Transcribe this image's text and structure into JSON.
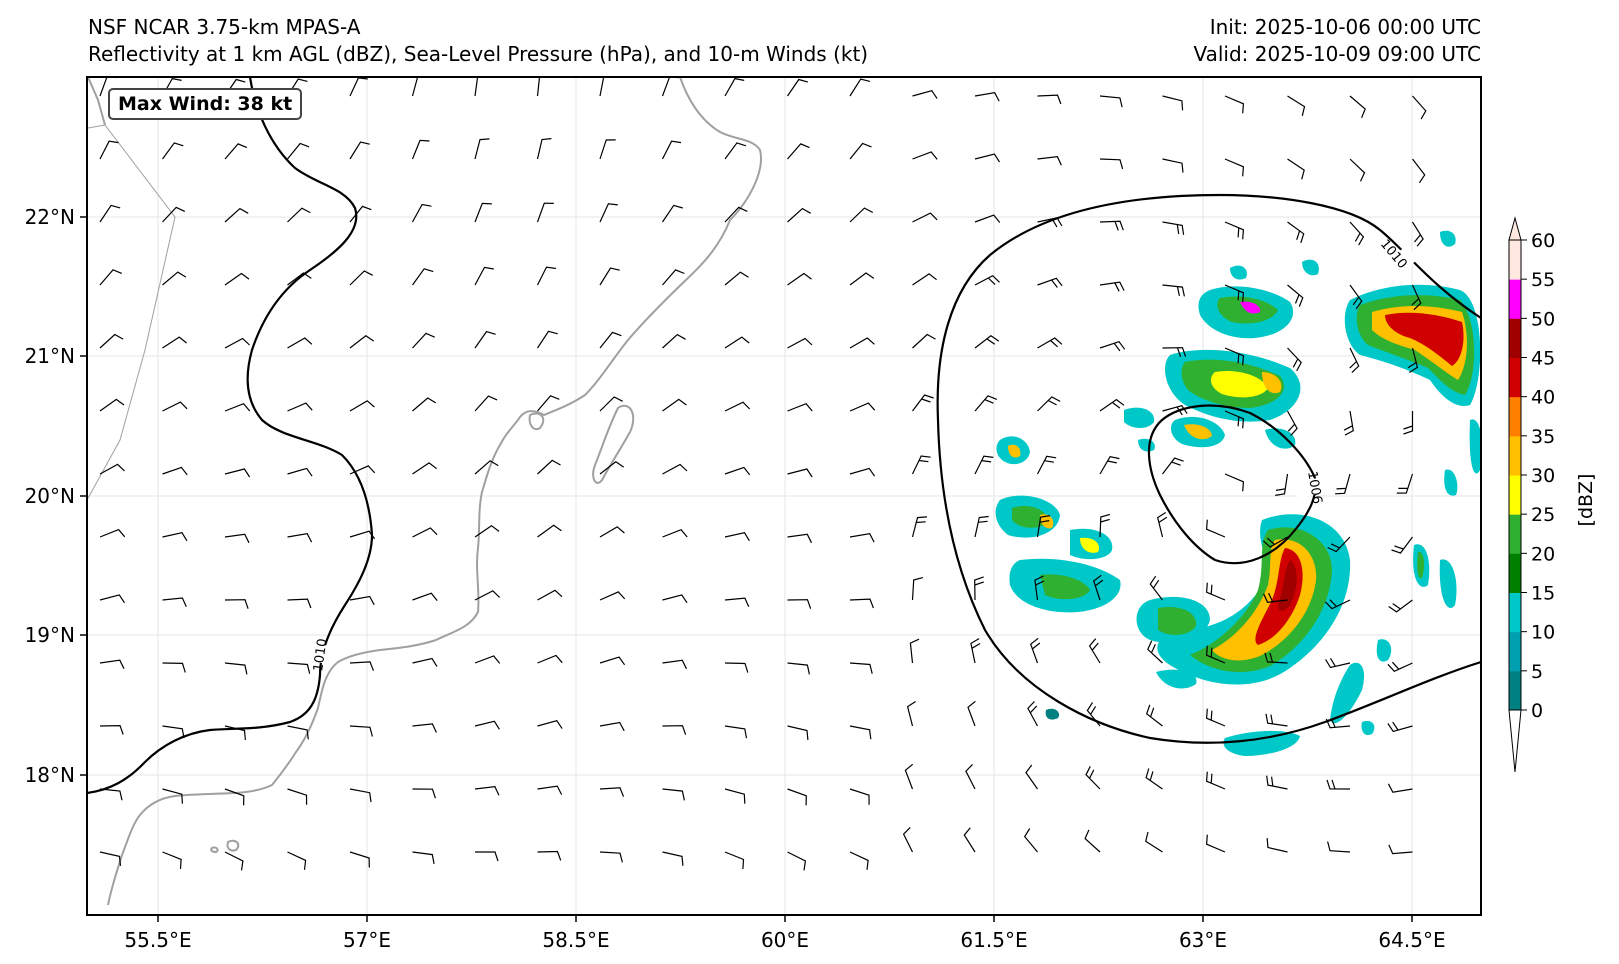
{
  "header": {
    "title_line1": "NSF NCAR 3.75-km MPAS-A",
    "title_line2": "Reflectivity at 1 km AGL (dBZ), Sea-Level Pressure (hPa), and 10-m Winds (kt)",
    "init": "Init: 2025-10-06 00:00 UTC",
    "valid": "Valid: 2025-10-09 09:00 UTC"
  },
  "max_wind_label": "Max Wind: 38 kt",
  "map": {
    "lon_ticks": [
      "55.5°E",
      "57°E",
      "58.5°E",
      "60°E",
      "61.5°E",
      "63°E",
      "64.5°E"
    ],
    "lat_ticks": [
      "22°N",
      "21°N",
      "20°N",
      "19°N",
      "18°N"
    ],
    "isobar_labels": [
      "1010",
      "1010",
      "1006"
    ],
    "coastline_color": "#a0a0a0",
    "isobar_color": "#000000",
    "gridlines": true
  },
  "colorbar": {
    "label": "[dBZ]",
    "ticks": [
      "0",
      "5",
      "10",
      "15",
      "20",
      "25",
      "30",
      "35",
      "40",
      "45",
      "50",
      "55",
      "60"
    ],
    "colors": [
      "#008080",
      "#00a0b0",
      "#00c8c8",
      "#008000",
      "#30b030",
      "#ffff00",
      "#ffc000",
      "#ff7f00",
      "#d00000",
      "#a00000",
      "#ff00ff",
      "#ffe8e0"
    ]
  }
}
